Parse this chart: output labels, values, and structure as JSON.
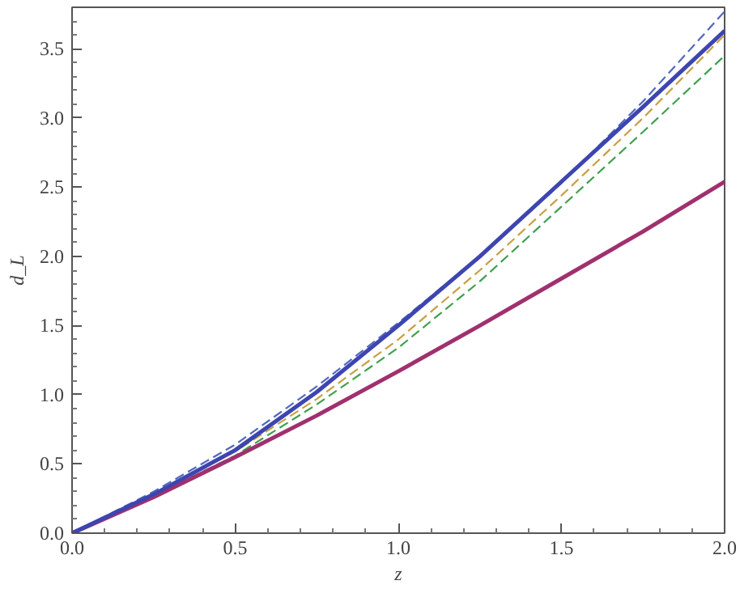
{
  "chart_data": {
    "type": "line",
    "xlabel": "z",
    "ylabel": "d_L",
    "x": [
      0,
      0.25,
      0.5,
      0.75,
      1,
      1.25,
      1.5,
      1.75,
      2
    ],
    "xlim": [
      0,
      2
    ],
    "ylim": [
      0,
      3.8
    ],
    "xticks": [
      {
        "value": 0,
        "label": "0.0"
      },
      {
        "value": 0.1,
        "label": null
      },
      {
        "value": 0.2,
        "label": null
      },
      {
        "value": 0.3,
        "label": null
      },
      {
        "value": 0.4,
        "label": null
      },
      {
        "value": 0.5,
        "label": "0.5"
      },
      {
        "value": 0.6,
        "label": null
      },
      {
        "value": 0.7,
        "label": null
      },
      {
        "value": 0.8,
        "label": null
      },
      {
        "value": 0.9,
        "label": null
      },
      {
        "value": 1,
        "label": "1.0"
      },
      {
        "value": 1.1,
        "label": null
      },
      {
        "value": 1.2,
        "label": null
      },
      {
        "value": 1.3,
        "label": null
      },
      {
        "value": 1.4,
        "label": null
      },
      {
        "value": 1.5,
        "label": "1.5"
      },
      {
        "value": 1.6,
        "label": null
      },
      {
        "value": 1.7,
        "label": null
      },
      {
        "value": 1.8,
        "label": null
      },
      {
        "value": 1.9,
        "label": null
      },
      {
        "value": 2,
        "label": "2.0"
      }
    ],
    "yticks": [
      {
        "value": 0,
        "label": "0.0"
      },
      {
        "value": 0.1,
        "label": null
      },
      {
        "value": 0.2,
        "label": null
      },
      {
        "value": 0.3,
        "label": null
      },
      {
        "value": 0.4,
        "label": null
      },
      {
        "value": 0.5,
        "label": "0.5"
      },
      {
        "value": 0.6,
        "label": null
      },
      {
        "value": 0.7,
        "label": null
      },
      {
        "value": 0.8,
        "label": null
      },
      {
        "value": 0.9,
        "label": null
      },
      {
        "value": 1,
        "label": "1.0"
      },
      {
        "value": 1.1,
        "label": null
      },
      {
        "value": 1.2,
        "label": null
      },
      {
        "value": 1.3,
        "label": null
      },
      {
        "value": 1.4,
        "label": null
      },
      {
        "value": 1.5,
        "label": "1.5"
      },
      {
        "value": 1.6,
        "label": null
      },
      {
        "value": 1.7,
        "label": null
      },
      {
        "value": 1.8,
        "label": null
      },
      {
        "value": 1.9,
        "label": null
      },
      {
        "value": 2,
        "label": "2.0"
      },
      {
        "value": 2.1,
        "label": null
      },
      {
        "value": 2.2,
        "label": null
      },
      {
        "value": 2.3,
        "label": null
      },
      {
        "value": 2.4,
        "label": null
      },
      {
        "value": 2.5,
        "label": "2.5"
      },
      {
        "value": 2.6,
        "label": null
      },
      {
        "value": 2.7,
        "label": null
      },
      {
        "value": 2.8,
        "label": null
      },
      {
        "value": 2.9,
        "label": null
      },
      {
        "value": 3,
        "label": "3.0"
      },
      {
        "value": 3.1,
        "label": null
      },
      {
        "value": 3.2,
        "label": null
      },
      {
        "value": 3.3,
        "label": null
      },
      {
        "value": 3.4,
        "label": null
      },
      {
        "value": 3.5,
        "label": "3.5"
      },
      {
        "value": 3.6,
        "label": null
      },
      {
        "value": 3.7,
        "label": null
      }
    ],
    "grid": false,
    "series": [
      {
        "color": "#5068c0",
        "line_style": "dashed",
        "values": [
          0,
          0.3,
          0.64,
          1.06,
          1.52,
          2.0,
          2.53,
          3.12,
          3.77
        ]
      },
      {
        "color": "#c8a040",
        "line_style": "dashed",
        "values": [
          0,
          0.28,
          0.59,
          0.97,
          1.4,
          1.9,
          2.44,
          3.0,
          3.6
        ]
      },
      {
        "color": "#40a050",
        "line_style": "dashed",
        "values": [
          0,
          0.27,
          0.56,
          0.93,
          1.34,
          1.82,
          2.36,
          2.9,
          3.45
        ]
      },
      {
        "color": "#a0306e",
        "line_style": "solid",
        "values": [
          0,
          0.26,
          0.55,
          0.85,
          1.17,
          1.5,
          1.84,
          2.18,
          2.54
        ]
      },
      {
        "color": "#3d45b0",
        "line_style": "solid",
        "values": [
          0,
          0.28,
          0.6,
          1.02,
          1.5,
          2.0,
          2.54,
          3.08,
          3.63
        ]
      }
    ]
  }
}
